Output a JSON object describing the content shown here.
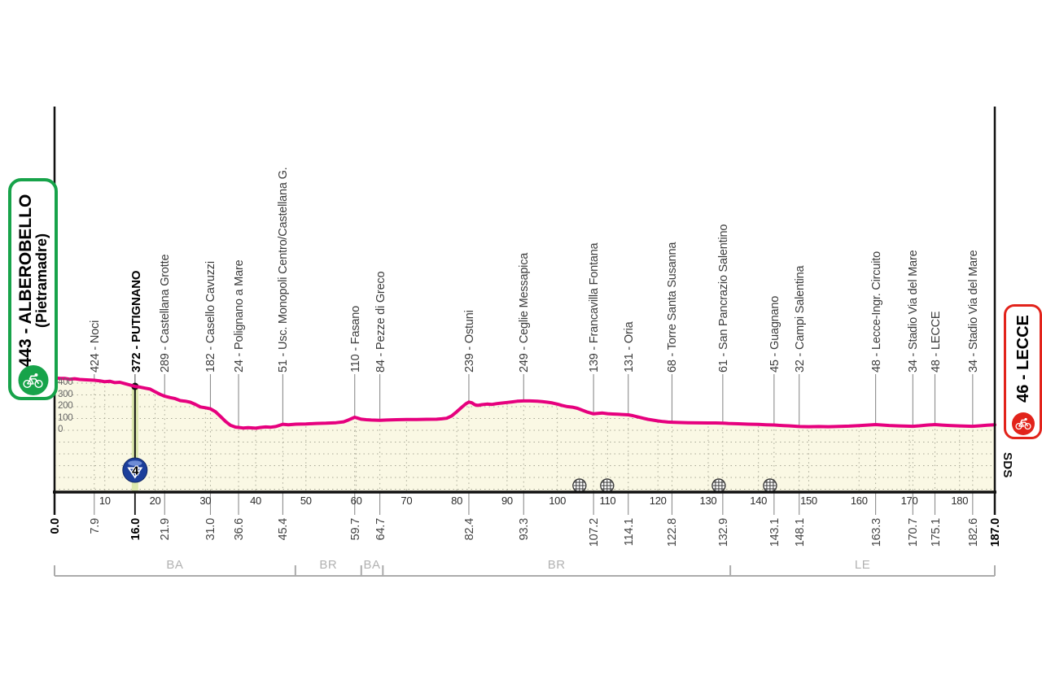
{
  "colors": {
    "profile_pink": "#E6007E",
    "area_fill": "#FAF8E4",
    "grid_dot": "#A8A896",
    "axis_black": "#111111",
    "leader_gray": "#8C8C8C",
    "start_green": "#17A34A",
    "finish_red": "#E2231B",
    "climb_badge_blue": "#1C3F9B",
    "climb_band_green": "#DCE8AE",
    "bracket_gray": "#ABABAB"
  },
  "start_box": {
    "line1": "443 - ALBEROBELLO",
    "line2": "(Pietramadre)"
  },
  "finish_box": {
    "line1": "46 - LECCE"
  },
  "chart_data": {
    "type": "area",
    "x_unit": "km",
    "y_unit": "m",
    "x_range_km": [
      0,
      187
    ],
    "total_km_label": "187.0",
    "start_km_label": "0.0",
    "elevation_ticks_m": [
      0,
      100,
      200,
      300,
      400
    ],
    "km_scale_ticks": [
      10,
      20,
      30,
      40,
      50,
      60,
      70,
      80,
      90,
      100,
      110,
      120,
      130,
      140,
      150,
      160,
      170,
      180
    ],
    "start": {
      "km": 0.0,
      "elevation_m": 443,
      "name": "ALBEROBELLO (Pietramadre)"
    },
    "finish": {
      "km": 187.0,
      "elevation_m": 46,
      "name": "LECCE"
    },
    "waypoints": [
      {
        "km": 7.9,
        "elevation_m": 424,
        "label": "424 - Noci",
        "km_label": "7.9",
        "bold": false
      },
      {
        "km": 16.0,
        "elevation_m": 372,
        "label": "372 - PUTIGNANO",
        "km_label": "16.0",
        "bold": true
      },
      {
        "km": 21.9,
        "elevation_m": 289,
        "label": "289 - Castellana Grotte",
        "km_label": "21.9",
        "bold": false
      },
      {
        "km": 31.0,
        "elevation_m": 182,
        "label": "182 - Casello Cavuzzi",
        "km_label": "31.0",
        "bold": false
      },
      {
        "km": 36.6,
        "elevation_m": 24,
        "label": "24 - Polignano a Mare",
        "km_label": "36.6",
        "bold": false
      },
      {
        "km": 45.4,
        "elevation_m": 51,
        "label": "51 - Usc. Monopoli Centro/Castellana G.",
        "km_label": "45.4",
        "bold": false
      },
      {
        "km": 59.7,
        "elevation_m": 110,
        "label": "110 - Fasano",
        "km_label": "59.7",
        "bold": false
      },
      {
        "km": 64.7,
        "elevation_m": 84,
        "label": "84 - Pezze di Greco",
        "km_label": "64.7",
        "bold": false
      },
      {
        "km": 82.4,
        "elevation_m": 239,
        "label": "239 - Ostuni",
        "km_label": "82.4",
        "bold": false
      },
      {
        "km": 93.3,
        "elevation_m": 249,
        "label": "249 - Ceglie Messapica",
        "km_label": "93.3",
        "bold": false
      },
      {
        "km": 107.2,
        "elevation_m": 139,
        "label": "139 - Francavilla Fontana",
        "km_label": "107.2",
        "bold": false
      },
      {
        "km": 114.1,
        "elevation_m": 131,
        "label": "131 - Oria",
        "km_label": "114.1",
        "bold": false
      },
      {
        "km": 122.8,
        "elevation_m": 68,
        "label": "68 - Torre Santa Susanna",
        "km_label": "122.8",
        "bold": false
      },
      {
        "km": 132.9,
        "elevation_m": 61,
        "label": "61 - San Pancrazio Salentino",
        "km_label": "132.9",
        "bold": false
      },
      {
        "km": 143.1,
        "elevation_m": 45,
        "label": "45 - Guagnano",
        "km_label": "143.1",
        "bold": false
      },
      {
        "km": 148.1,
        "elevation_m": 32,
        "label": "32 - Campi Salentina",
        "km_label": "148.1",
        "bold": false
      },
      {
        "km": 163.3,
        "elevation_m": 48,
        "label": "48 - Lecce-Ingr. Circuito",
        "km_label": "163.3",
        "bold": false
      },
      {
        "km": 170.7,
        "elevation_m": 34,
        "label": "34 - Stadio Via del Mare",
        "km_label": "170.7",
        "bold": false
      },
      {
        "km": 175.1,
        "elevation_m": 48,
        "label": "48 - LECCE",
        "km_label": "175.1",
        "bold": false
      },
      {
        "km": 182.6,
        "elevation_m": 34,
        "label": "34 - Stadio Via del Mare",
        "km_label": "182.6",
        "bold": false
      }
    ],
    "climbs": [
      {
        "km": 16.0,
        "elevation_m": 372,
        "category": "4",
        "name": "Putignano"
      }
    ],
    "level_crossings_km": [
      104.4,
      109.9,
      132.1,
      142.3
    ],
    "provinces": [
      {
        "label": "BA",
        "from_km": 0,
        "to_km": 47.9
      },
      {
        "label": "BR",
        "from_km": 47.9,
        "to_km": 61.0
      },
      {
        "label": "BA",
        "from_km": 61.0,
        "to_km": 65.3
      },
      {
        "label": "BR",
        "from_km": 65.3,
        "to_km": 134.4
      },
      {
        "label": "LE",
        "from_km": 134.4,
        "to_km": 187
      }
    ],
    "credit": "SDS",
    "profile_m": [
      [
        0,
        443
      ],
      [
        1,
        441
      ],
      [
        2,
        440
      ],
      [
        3,
        433
      ],
      [
        4,
        437
      ],
      [
        5,
        431
      ],
      [
        6,
        428
      ],
      [
        7.9,
        424
      ],
      [
        9,
        419
      ],
      [
        10,
        412
      ],
      [
        11,
        416
      ],
      [
        12,
        404
      ],
      [
        13,
        407
      ],
      [
        14,
        395
      ],
      [
        15,
        384
      ],
      [
        16,
        372
      ],
      [
        17,
        366
      ],
      [
        18,
        357
      ],
      [
        19,
        349
      ],
      [
        20,
        327
      ],
      [
        21,
        305
      ],
      [
        21.9,
        289
      ],
      [
        23,
        277
      ],
      [
        24,
        268
      ],
      [
        25,
        252
      ],
      [
        25.5,
        249
      ],
      [
        26,
        247
      ],
      [
        27,
        238
      ],
      [
        28,
        220
      ],
      [
        29,
        198
      ],
      [
        30,
        191
      ],
      [
        31,
        182
      ],
      [
        32,
        158
      ],
      [
        33,
        118
      ],
      [
        34,
        75
      ],
      [
        35,
        42
      ],
      [
        36,
        27
      ],
      [
        36.6,
        24
      ],
      [
        37.5,
        19
      ],
      [
        38.5,
        22
      ],
      [
        40,
        18
      ],
      [
        41,
        24
      ],
      [
        42,
        28
      ],
      [
        43,
        26
      ],
      [
        44,
        32
      ],
      [
        45.4,
        51
      ],
      [
        46.5,
        46
      ],
      [
        48,
        52
      ],
      [
        50,
        54
      ],
      [
        52,
        58
      ],
      [
        54,
        60
      ],
      [
        56,
        64
      ],
      [
        57.5,
        72
      ],
      [
        58.5,
        88
      ],
      [
        59.7,
        110
      ],
      [
        60.3,
        103
      ],
      [
        61,
        94
      ],
      [
        62,
        90
      ],
      [
        63,
        87
      ],
      [
        64.7,
        84
      ],
      [
        66,
        87
      ],
      [
        68,
        90
      ],
      [
        70,
        92
      ],
      [
        72,
        91
      ],
      [
        74,
        93
      ],
      [
        76,
        94
      ],
      [
        77,
        97
      ],
      [
        78,
        102
      ],
      [
        79,
        122
      ],
      [
        80,
        158
      ],
      [
        81,
        196
      ],
      [
        81.8,
        224
      ],
      [
        82.4,
        239
      ],
      [
        83,
        233
      ],
      [
        83.6,
        216
      ],
      [
        84.2,
        211
      ],
      [
        85,
        217
      ],
      [
        86,
        222
      ],
      [
        87,
        219
      ],
      [
        88,
        226
      ],
      [
        89,
        231
      ],
      [
        90,
        236
      ],
      [
        91,
        241
      ],
      [
        92,
        246
      ],
      [
        93.3,
        249
      ],
      [
        94.5,
        249
      ],
      [
        96,
        247
      ],
      [
        97,
        243
      ],
      [
        98,
        238
      ],
      [
        99,
        232
      ],
      [
        100,
        222
      ],
      [
        101,
        210
      ],
      [
        102,
        201
      ],
      [
        103,
        196
      ],
      [
        104,
        186
      ],
      [
        105,
        170
      ],
      [
        106,
        154
      ],
      [
        107.2,
        139
      ],
      [
        108,
        143
      ],
      [
        109,
        146
      ],
      [
        110,
        141
      ],
      [
        111,
        138
      ],
      [
        112,
        136
      ],
      [
        113,
        134
      ],
      [
        114.1,
        131
      ],
      [
        115,
        124
      ],
      [
        116,
        113
      ],
      [
        117,
        103
      ],
      [
        118,
        93
      ],
      [
        119,
        86
      ],
      [
        120,
        79
      ],
      [
        121,
        74
      ],
      [
        122,
        70
      ],
      [
        122.8,
        68
      ],
      [
        124,
        66
      ],
      [
        126,
        64
      ],
      [
        128,
        63
      ],
      [
        130,
        62
      ],
      [
        131.5,
        62
      ],
      [
        132.9,
        61
      ],
      [
        134,
        58
      ],
      [
        136,
        55
      ],
      [
        138,
        52
      ],
      [
        140,
        50
      ],
      [
        141.5,
        47
      ],
      [
        143.1,
        45
      ],
      [
        144,
        42
      ],
      [
        145,
        40
      ],
      [
        146,
        38
      ],
      [
        147,
        35
      ],
      [
        148.1,
        32
      ],
      [
        150,
        30
      ],
      [
        152,
        32
      ],
      [
        154,
        30
      ],
      [
        156,
        33
      ],
      [
        158,
        35
      ],
      [
        160,
        40
      ],
      [
        162,
        45
      ],
      [
        163.3,
        48
      ],
      [
        164.5,
        45
      ],
      [
        166,
        41
      ],
      [
        168,
        37
      ],
      [
        169.5,
        35
      ],
      [
        170.7,
        34
      ],
      [
        172,
        38
      ],
      [
        173.5,
        44
      ],
      [
        175.1,
        48
      ],
      [
        176.5,
        44
      ],
      [
        178,
        41
      ],
      [
        180,
        37
      ],
      [
        182.6,
        34
      ],
      [
        184,
        38
      ],
      [
        185.5,
        43
      ],
      [
        187,
        46
      ]
    ]
  }
}
